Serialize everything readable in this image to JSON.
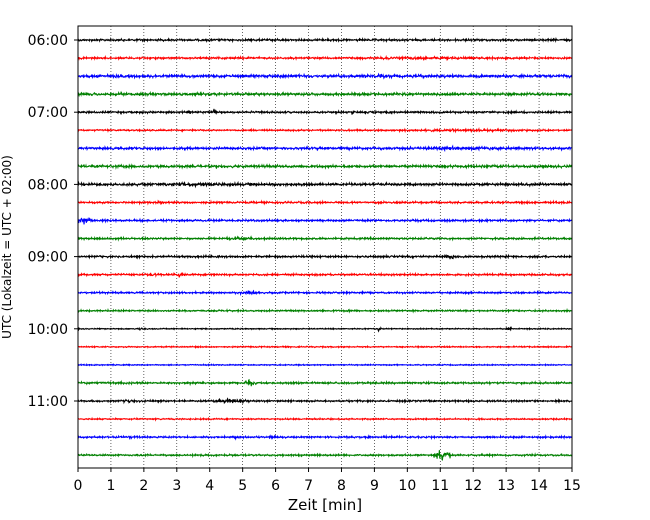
{
  "chart_data": {
    "type": "line",
    "title": "",
    "xlabel": "Zeit  [min]",
    "ylabel": "UTC (Lokalzeit = UTC + 02:00)",
    "xlim": [
      0,
      15
    ],
    "x_ticks": [
      "0",
      "1",
      "2",
      "3",
      "4",
      "5",
      "6",
      "7",
      "8",
      "9",
      "10",
      "11",
      "12",
      "13",
      "14",
      "15"
    ],
    "y_ticks": [
      "06:00",
      "07:00",
      "08:00",
      "09:00",
      "10:00",
      "11:00"
    ],
    "grid": "vertical dotted",
    "colors": [
      "#000000",
      "#ff0000",
      "#0000ff",
      "#008000"
    ],
    "traces": [
      {
        "start": "06:00",
        "color": "#000000",
        "amp": 0.24,
        "events": []
      },
      {
        "start": "06:15",
        "color": "#ff0000",
        "amp": 0.22,
        "events": [
          [
            6.5,
            14.8,
            0.32
          ]
        ]
      },
      {
        "start": "06:30",
        "color": "#0000ff",
        "amp": 0.34,
        "events": [
          [
            8.9,
            9.4,
            0.6
          ]
        ]
      },
      {
        "start": "06:45",
        "color": "#008000",
        "amp": 0.3,
        "events": []
      },
      {
        "start": "07:00",
        "color": "#000000",
        "amp": 0.22,
        "events": [
          [
            3.3,
            3.5,
            0.5
          ],
          [
            4.1,
            4.2,
            0.9
          ],
          [
            8.3,
            8.4,
            0.8
          ]
        ]
      },
      {
        "start": "07:15",
        "color": "#ff0000",
        "amp": 0.18,
        "events": [
          [
            8.3,
            15,
            0.32
          ]
        ]
      },
      {
        "start": "07:30",
        "color": "#0000ff",
        "amp": 0.28,
        "events": [
          [
            7.8,
            15,
            0.4
          ]
        ]
      },
      {
        "start": "07:45",
        "color": "#008000",
        "amp": 0.3,
        "events": []
      },
      {
        "start": "08:00",
        "color": "#000000",
        "amp": 0.3,
        "events": [
          [
            0,
            6.8,
            0.45
          ]
        ]
      },
      {
        "start": "08:15",
        "color": "#ff0000",
        "amp": 0.22,
        "events": [
          [
            2.4,
            2.6,
            0.6
          ]
        ]
      },
      {
        "start": "08:30",
        "color": "#0000ff",
        "amp": 0.22,
        "events": [
          [
            0,
            0.4,
            0.95
          ]
        ]
      },
      {
        "start": "08:45",
        "color": "#008000",
        "amp": 0.22,
        "events": [
          [
            4.5,
            5.3,
            0.55
          ]
        ]
      },
      {
        "start": "09:00",
        "color": "#000000",
        "amp": 0.22,
        "events": [
          [
            7.0,
            7.2,
            0.45
          ],
          [
            11.1,
            11.5,
            0.6
          ],
          [
            12.9,
            13.1,
            0.45
          ]
        ]
      },
      {
        "start": "09:15",
        "color": "#ff0000",
        "amp": 0.22,
        "events": [
          [
            2.1,
            2.4,
            0.5
          ],
          [
            3.0,
            3.2,
            0.7
          ],
          [
            4.0,
            4.2,
            0.45
          ]
        ]
      },
      {
        "start": "09:30",
        "color": "#0000ff",
        "amp": 0.2,
        "events": [
          [
            4.9,
            5.5,
            0.5
          ]
        ]
      },
      {
        "start": "09:45",
        "color": "#008000",
        "amp": 0.18,
        "events": [
          [
            8.1,
            8.3,
            0.35
          ]
        ]
      },
      {
        "start": "10:00",
        "color": "#000000",
        "amp": 0.12,
        "events": [
          [
            1.8,
            2.0,
            0.4
          ],
          [
            9.1,
            9.2,
            0.7
          ],
          [
            13.0,
            13.2,
            0.4
          ]
        ]
      },
      {
        "start": "10:15",
        "color": "#ff0000",
        "amp": 0.14,
        "events": []
      },
      {
        "start": "10:30",
        "color": "#0000ff",
        "amp": 0.12,
        "events": []
      },
      {
        "start": "10:45",
        "color": "#008000",
        "amp": 0.22,
        "events": [
          [
            5.0,
            5.4,
            0.9
          ],
          [
            3.1,
            4.0,
            0.35
          ]
        ]
      },
      {
        "start": "11:00",
        "color": "#000000",
        "amp": 0.2,
        "events": [
          [
            1.3,
            1.7,
            0.45
          ],
          [
            4.1,
            5.2,
            0.55
          ]
        ]
      },
      {
        "start": "11:15",
        "color": "#ff0000",
        "amp": 0.16,
        "events": []
      },
      {
        "start": "11:30",
        "color": "#0000ff",
        "amp": 0.2,
        "events": [
          [
            1.5,
            1.7,
            0.4
          ],
          [
            4.7,
            4.9,
            0.45
          ],
          [
            5.8,
            6.0,
            0.5
          ],
          [
            8.7,
            8.9,
            0.35
          ]
        ]
      },
      {
        "start": "11:45",
        "color": "#008000",
        "amp": 0.2,
        "events": [
          [
            10.8,
            11.3,
            1.3
          ]
        ]
      }
    ]
  }
}
